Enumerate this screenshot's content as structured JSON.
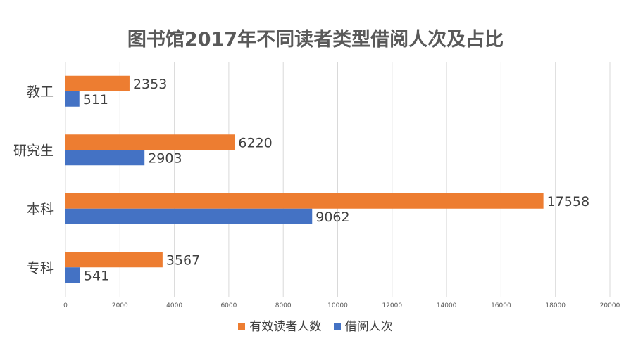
{
  "chart_data": {
    "type": "bar",
    "orientation": "horizontal",
    "title": "图书馆2017年不同读者类型借阅人次及占比",
    "categories": [
      "教工",
      "研究生",
      "本科",
      "专科"
    ],
    "series": [
      {
        "name": "有效读者人数",
        "color": "#ED7D31",
        "values": [
          2353,
          6220,
          17558,
          3567
        ]
      },
      {
        "name": "借阅人次",
        "color": "#4472C4",
        "values": [
          511,
          2903,
          9062,
          541
        ]
      }
    ],
    "xlim": [
      0,
      20000
    ],
    "xticks": [
      0,
      2000,
      4000,
      6000,
      8000,
      10000,
      12000,
      14000,
      16000,
      18000,
      20000
    ],
    "grid": true,
    "legend_position": "bottom"
  }
}
